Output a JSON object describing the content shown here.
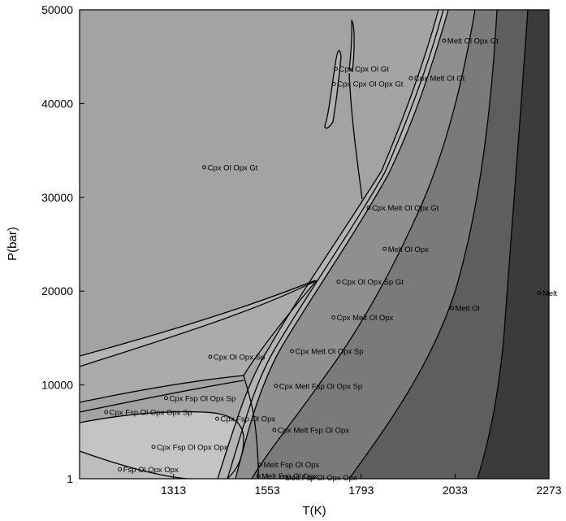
{
  "chart_data": {
    "type": "area",
    "title": "",
    "xlabel": "T(K)",
    "ylabel": "P(bar)",
    "xlim": [
      1073,
      2273
    ],
    "ylim": [
      1,
      50000
    ],
    "x_ticks": [
      1313,
      1553,
      1793,
      2033,
      2273
    ],
    "y_ticks": [
      1,
      10000,
      20000,
      30000,
      40000,
      50000
    ],
    "x_tick_labels": [
      "1313",
      "1553",
      "1793",
      "2033",
      "2273"
    ],
    "y_tick_labels": [
      "1",
      "10000",
      "20000",
      "30000",
      "40000",
      "50000"
    ],
    "grid": false,
    "legend": "none",
    "colors": {
      "subsolidus": "#a3a3a3",
      "subsolidus_light": "#c4c4c4",
      "sp_band": "#b4b4b4",
      "melt_trace": "#8f8f8f",
      "melt_ol_opx": "#7a7a7a",
      "melt_ol": "#5e5e5e",
      "melt": "#3b3b3b",
      "line": "#000000"
    },
    "fields": [
      {
        "label": "Cpx Ol Opx Gt",
        "T": 1392,
        "P": 33200
      },
      {
        "label": "Cpx Cpx Ol Gt",
        "T": 1728,
        "P": 43700
      },
      {
        "label": "Cpx Cpx Ol Opx Gt",
        "T": 1723,
        "P": 42100
      },
      {
        "label": "Cpx Melt Ol Gt",
        "T": 1920,
        "P": 42700
      },
      {
        "label": "Melt Ol Opx Gt",
        "T": 2005,
        "P": 46700
      },
      {
        "label": "Cpx Melt Ol Opx Gt",
        "T": 1812,
        "P": 28900
      },
      {
        "label": "Melt Ol Opx",
        "T": 1853,
        "P": 24500
      },
      {
        "label": "Cpx Ol Opx Sp Gt",
        "T": 1735,
        "P": 21000
      },
      {
        "label": "Melt Ol",
        "T": 2025,
        "P": 18200
      },
      {
        "label": "Melt",
        "T": 2248,
        "P": 19800
      },
      {
        "label": "Cpx Melt Ol Opx",
        "T": 1722,
        "P": 17200
      },
      {
        "label": "Cpx Ol Opx Sp",
        "T": 1407,
        "P": 13000
      },
      {
        "label": "Cpx Melt Ol Opx Sp",
        "T": 1616,
        "P": 13600
      },
      {
        "label": "Cpx Melt Fsp Ol Opx Sp",
        "T": 1575,
        "P": 9900
      },
      {
        "label": "Cpx Fsp Ol Opx Sp",
        "T": 1294,
        "P": 8600
      },
      {
        "label": "Cpx Fsp Ol Opx Opx Sp",
        "T": 1141,
        "P": 7100
      },
      {
        "label": "Cpx Fsp Ol Opx",
        "T": 1425,
        "P": 6400
      },
      {
        "label": "Cpx Melt Fsp Ol Opx",
        "T": 1571,
        "P": 5200
      },
      {
        "label": "Cpx Fsp Ol Opx Opx",
        "T": 1262,
        "P": 3400
      },
      {
        "label": "Melt Fsp Ol Opx",
        "T": 1535,
        "P": 1500
      },
      {
        "label": "Fsp Ol Opx Opx",
        "T": 1176,
        "P": 1000
      },
      {
        "label": "Melt Fsp Ol Opx",
        "T": 1530,
        "P": 300
      },
      {
        "label": "Melt Fsp Ol Opx Opx",
        "T": 1590,
        "P": 150
      }
    ]
  }
}
